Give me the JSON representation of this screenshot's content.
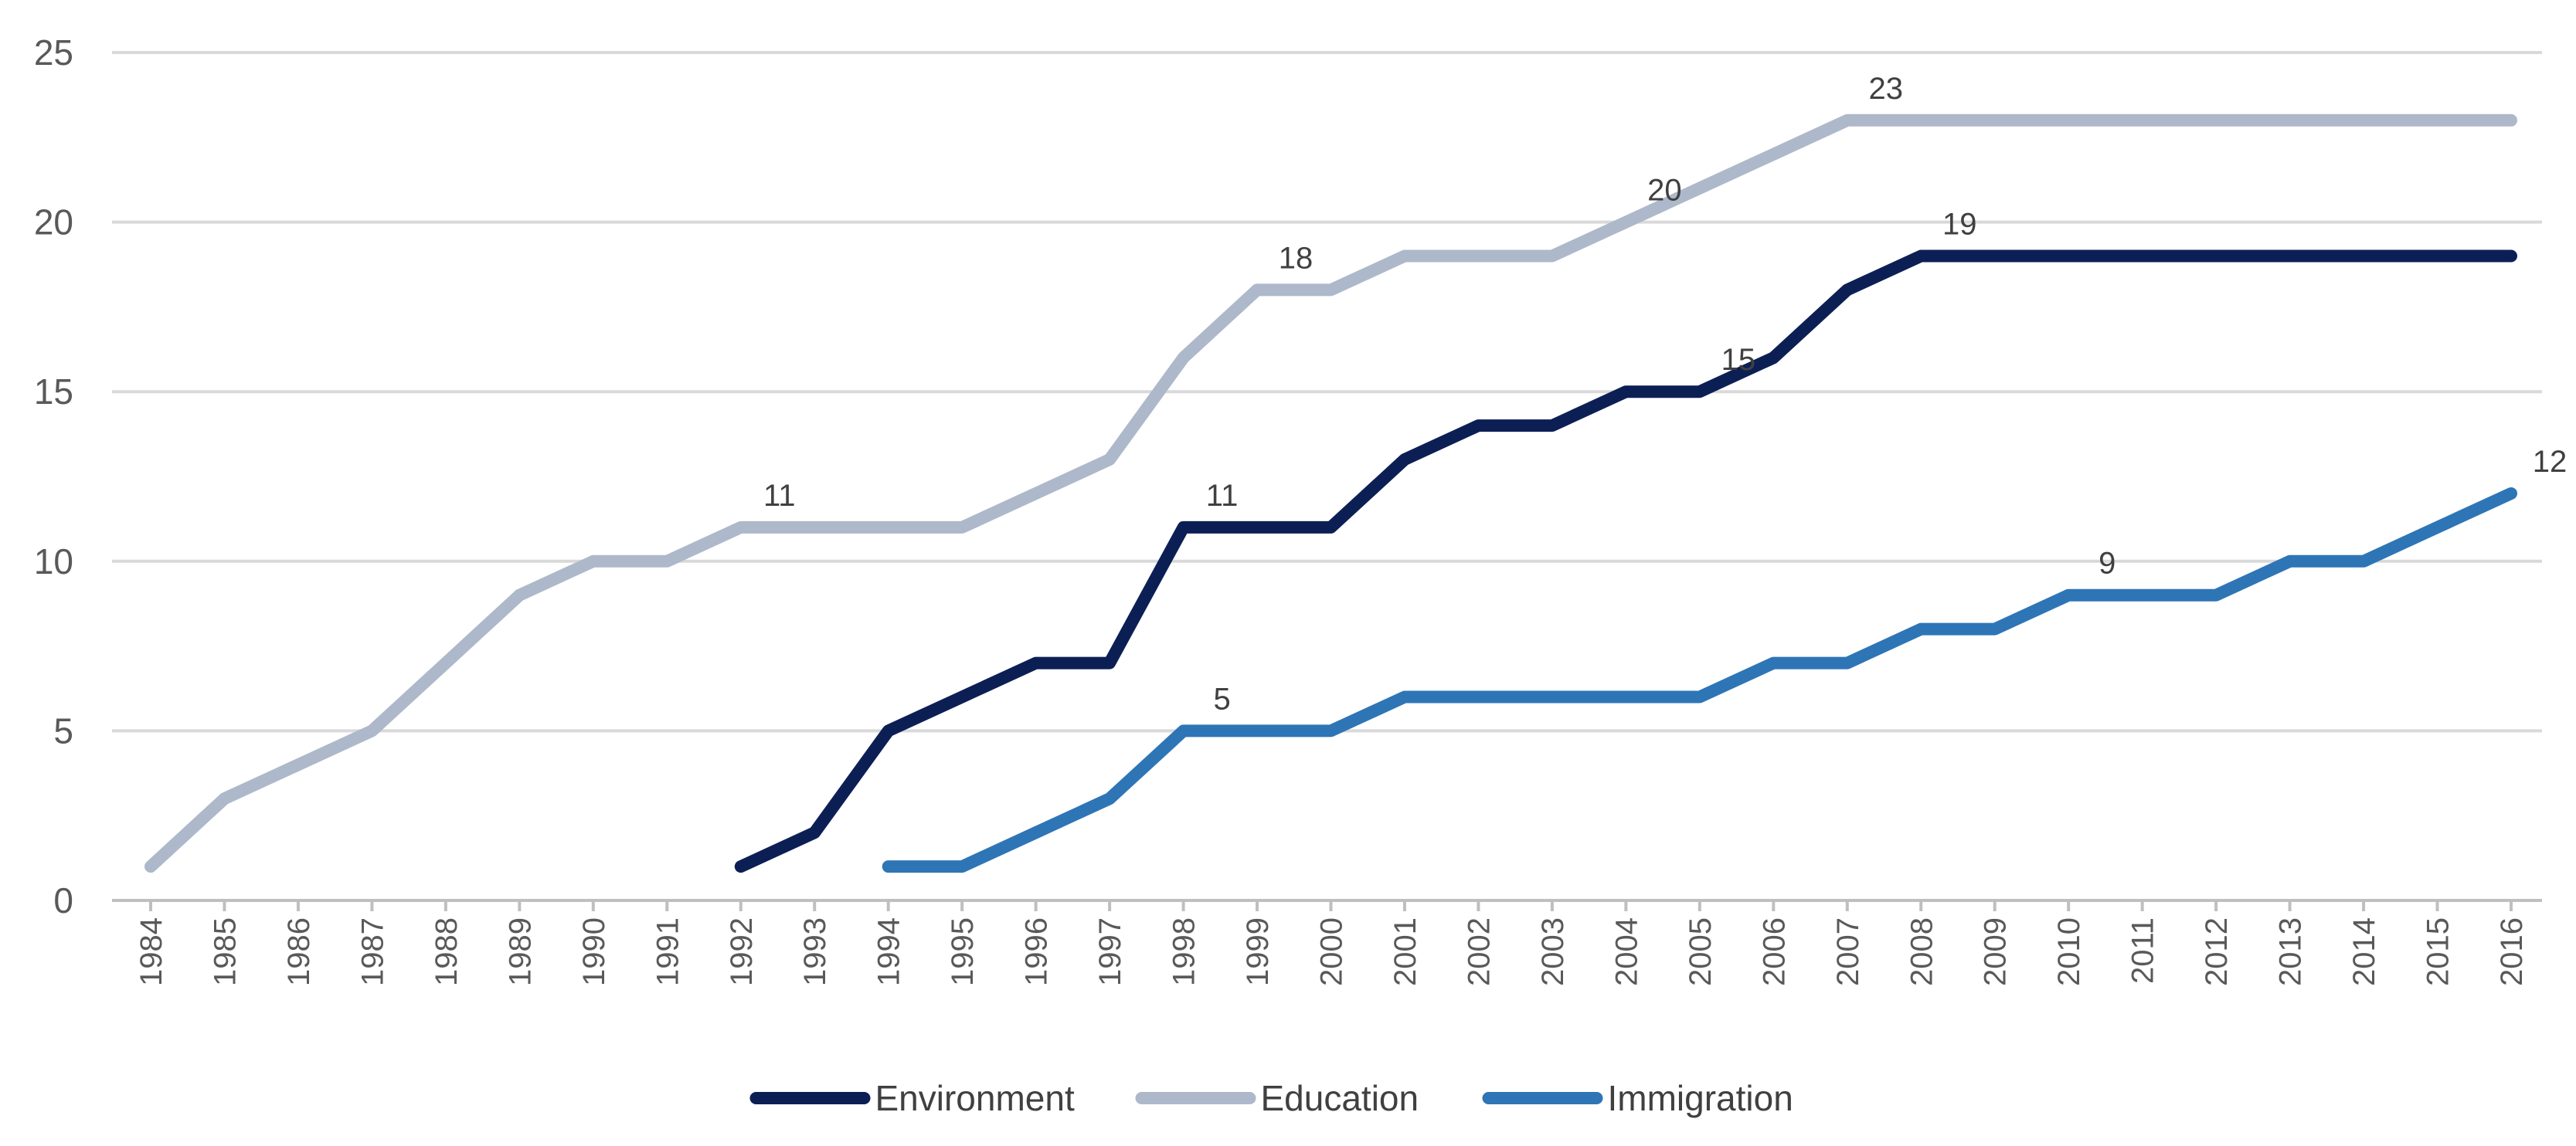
{
  "chart_data": {
    "type": "line",
    "title": "",
    "xlabel": "",
    "ylabel": "",
    "ylim": [
      0,
      25
    ],
    "yticks": [
      0,
      5,
      10,
      15,
      20,
      25
    ],
    "grid": true,
    "legend_position": "bottom",
    "categories": [
      "1984",
      "1985",
      "1986",
      "1987",
      "1988",
      "1989",
      "1990",
      "1991",
      "1992",
      "1993",
      "1994",
      "1995",
      "1996",
      "1997",
      "1998",
      "1999",
      "2000",
      "2001",
      "2002",
      "2003",
      "2004",
      "2005",
      "2006",
      "2007",
      "2008",
      "2009",
      "2010",
      "2011",
      "2012",
      "2013",
      "2014",
      "2015",
      "2016"
    ],
    "series": [
      {
        "name": "Environment",
        "color": "#0c1f55",
        "values": [
          null,
          null,
          null,
          null,
          null,
          null,
          null,
          null,
          1,
          2,
          5,
          6,
          7,
          7,
          11,
          11,
          11,
          13,
          14,
          14,
          15,
          15,
          16,
          18,
          19,
          19,
          19,
          19,
          19,
          19,
          19,
          19,
          19
        ],
        "labels": [
          {
            "year": "1998",
            "text": "11"
          },
          {
            "year": "2005",
            "text": "15"
          },
          {
            "year": "2008",
            "text": "19"
          }
        ]
      },
      {
        "name": "Education",
        "color": "#adb9ca",
        "values": [
          1,
          3,
          4,
          5,
          7,
          9,
          10,
          10,
          11,
          11,
          11,
          11,
          12,
          13,
          16,
          18,
          18,
          19,
          19,
          19,
          20,
          21,
          22,
          23,
          23,
          23,
          23,
          23,
          23,
          23,
          23,
          23,
          23
        ],
        "labels": [
          {
            "year": "1992",
            "text": "11"
          },
          {
            "year": "1999",
            "text": "18"
          },
          {
            "year": "2004",
            "text": "20"
          },
          {
            "year": "2007",
            "text": "23"
          }
        ]
      },
      {
        "name": "Immigration",
        "color": "#2e75b6",
        "values": [
          null,
          null,
          null,
          null,
          null,
          null,
          null,
          null,
          null,
          null,
          1,
          1,
          2,
          3,
          5,
          5,
          5,
          6,
          6,
          6,
          6,
          6,
          7,
          7,
          8,
          8,
          9,
          9,
          9,
          10,
          10,
          11,
          12
        ],
        "labels": [
          {
            "year": "1998",
            "text": "5"
          },
          {
            "year": "2010",
            "text": "9"
          },
          {
            "year": "2016",
            "text": "12"
          }
        ]
      }
    ]
  }
}
